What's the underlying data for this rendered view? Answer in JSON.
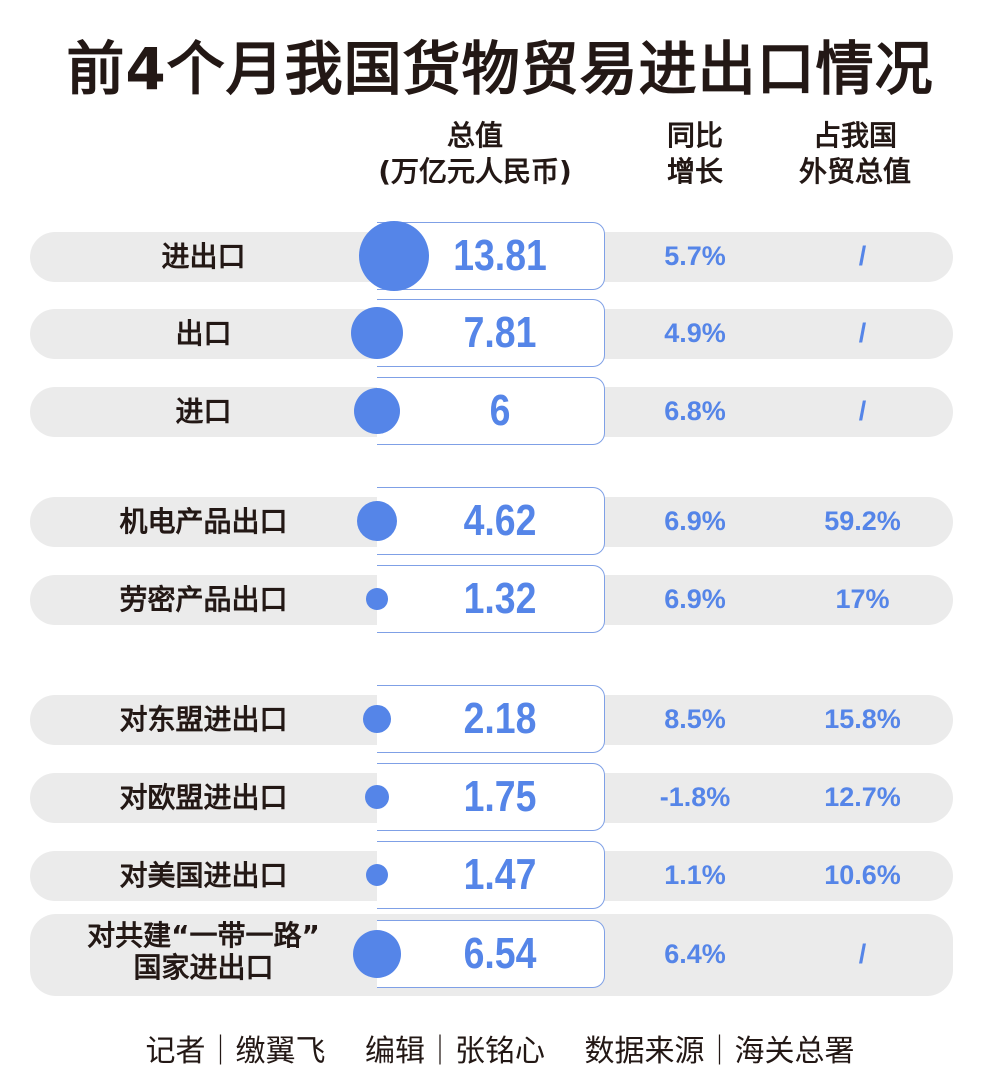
{
  "title": "前4个月我国货物贸易进出口情况",
  "headers": {
    "total": "总值",
    "total_unit": "(万亿元人民币)",
    "yoy_1": "同比",
    "yoy_2": "增长",
    "share_1": "占我国",
    "share_2": "外贸总值"
  },
  "colors": {
    "accent": "#5585e8",
    "row_bg": "#ebebeb",
    "text": "#231815"
  },
  "chart_data": {
    "type": "table",
    "title": "前4个月我国货物贸易进出口情况",
    "columns": [
      "总值(万亿元人民币)",
      "同比增长",
      "占我国外贸总值"
    ],
    "rows": [
      {
        "label": "进出口",
        "value": 13.81,
        "value_text": "13.81",
        "yoy": "5.7%",
        "share": "/"
      },
      {
        "label": "出口",
        "value": 7.81,
        "value_text": "7.81",
        "yoy": "4.9%",
        "share": "/"
      },
      {
        "label": "进口",
        "value": 6,
        "value_text": "6",
        "yoy": "6.8%",
        "share": "/"
      },
      {
        "label": "机电产品出口",
        "value": 4.62,
        "value_text": "4.62",
        "yoy": "6.9%",
        "share": "59.2%"
      },
      {
        "label": "劳密产品出口",
        "value": 1.32,
        "value_text": "1.32",
        "yoy": "6.9%",
        "share": "17%"
      },
      {
        "label": "对东盟进出口",
        "value": 2.18,
        "value_text": "2.18",
        "yoy": "8.5%",
        "share": "15.8%"
      },
      {
        "label": "对欧盟进出口",
        "value": 1.75,
        "value_text": "1.75",
        "yoy": "-1.8%",
        "share": "12.7%"
      },
      {
        "label": "对美国进出口",
        "value": 1.47,
        "value_text": "1.47",
        "yoy": "1.1%",
        "share": "10.6%"
      },
      {
        "label": "对共建“一带一路”\n国家进出口",
        "label_line1": "对共建“一带一路”",
        "label_line2": "国家进出口",
        "value": 6.54,
        "value_text": "6.54",
        "yoy": "6.4%",
        "share": "/"
      }
    ]
  },
  "footer": "记者｜缴翼飞　 编辑｜张铭心　 数据来源｜海关总署"
}
